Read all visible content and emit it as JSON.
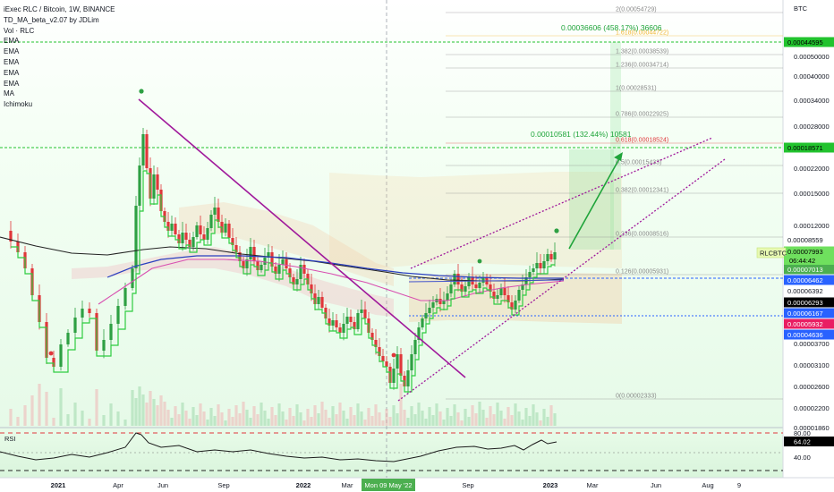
{
  "legend": {
    "title": "iExec RLC / Bitcoin, 1W, BINANCE",
    "indicators": [
      "TD_MA_beta_v2.07 by JDLim",
      "Vol · RLC",
      "EMA",
      "EMA",
      "EMA",
      "EMA",
      "EMA",
      "MA",
      "Ichimoku"
    ]
  },
  "currency": "BTC",
  "symbol_tag": "RLCBTC",
  "countdown": "06:44:42",
  "rsi": {
    "label": "RSI",
    "value": "64.02",
    "levels": [
      "80.00",
      "40.00"
    ]
  },
  "measures": [
    {
      "text": "0.00036606 (458.17%) 36606"
    },
    {
      "text": "0.00010581 (132.44%) 10581"
    }
  ],
  "fib_levels": [
    {
      "label": "2(0.00054729)",
      "color": "#8a8a8a"
    },
    {
      "label": "1.618(0.00044722)",
      "color": "#f2b632"
    },
    {
      "label": "1.382(0.00038539)",
      "color": "#8a8a8a"
    },
    {
      "label": "1.236(0.00034714)",
      "color": "#8a8a8a"
    },
    {
      "label": "1(0.00028531)",
      "color": "#8a8a8a"
    },
    {
      "label": "0.786(0.00022925)",
      "color": "#8a8a8a"
    },
    {
      "label": "0.618(0.00018524)",
      "color": "#e0363a"
    },
    {
      "label": "0.5(0.00015433)",
      "color": "#8a8a8a"
    },
    {
      "label": "0.382(0.00012341)",
      "color": "#8a8a8a"
    },
    {
      "label": "0.236(0.00008516)",
      "color": "#8a8a8a"
    },
    {
      "label": "0.126(0.00005931)",
      "color": "#8a8a8a"
    },
    {
      "label": "0(0.00002333)",
      "color": "#8a8a8a"
    }
  ],
  "chart_data": {
    "type": "candlestick",
    "title": "iExec RLC / Bitcoin, 1W, BINANCE",
    "y_axis": {
      "scale": "log",
      "ticks": [
        "0.00050000",
        "0.00040000",
        "0.00034000",
        "0.00028000",
        "0.00022000",
        "0.00015000",
        "0.00012000",
        "0.00010000",
        "0.00003700",
        "0.00003100",
        "0.00002600",
        "0.00002200",
        "0.00001860"
      ]
    },
    "x_axis": {
      "ticks": [
        "2021",
        "Apr",
        "Jun",
        "Sep",
        "2022",
        "Mar",
        "Mon 09 May '22",
        "Sep",
        "2023",
        "Mar",
        "Jun",
        "Aug",
        "9"
      ]
    },
    "price_badges": [
      {
        "value": "0.00044595",
        "bg": "#22c32e",
        "fg": "#000000"
      },
      {
        "value": "0.00018571",
        "bg": "#22c32e",
        "fg": "#000000"
      },
      {
        "value": "0.00008559",
        "bg": "#ffffff",
        "fg": "#131722"
      },
      {
        "value": "0.00007993",
        "bg": "#6fe05e",
        "fg": "#000000"
      },
      {
        "value": "0.00007013",
        "bg": "#4caf50",
        "fg": "#ffffff"
      },
      {
        "value": "0.00006462",
        "bg": "#2962ff",
        "fg": "#ffffff"
      },
      {
        "value": "0.00006392",
        "bg": "#ffffff",
        "fg": "#131722"
      },
      {
        "value": "0.00006293",
        "bg": "#000000",
        "fg": "#ffffff"
      },
      {
        "value": "0.00006167",
        "bg": "#2962ff",
        "fg": "#ffffff"
      },
      {
        "value": "0.00005932",
        "bg": "#e91e63",
        "fg": "#ffffff"
      },
      {
        "value": "0.00004636",
        "bg": "#2962ff",
        "fg": "#ffffff"
      }
    ],
    "last_price": "0.00007993",
    "colors": {
      "up": "#2ea043",
      "down": "#e0363a",
      "ema_black": "#222222",
      "ema_blue": "#2a3fbf",
      "ema_pink": "#d84fb0",
      "td_green": "#2ecc40",
      "trendline": "#a0199b"
    }
  }
}
